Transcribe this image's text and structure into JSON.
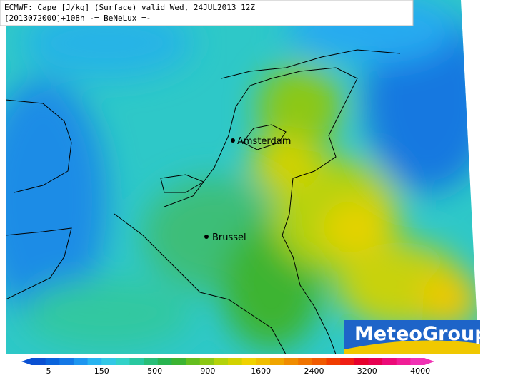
{
  "header": {
    "line1": "ECMWF: Cape [J/kg] (Surface) valid Wed, 24JUL2013 12Z",
    "line2": "[2013072000]+108h -= BeNeLux =-"
  },
  "cities": [
    {
      "label": "Amsterdam"
    },
    {
      "label": "Brussel"
    }
  ],
  "logo": "MeteoGroup",
  "legend": {
    "ticks": [
      5,
      150,
      500,
      900,
      1600,
      2400,
      3200,
      4000
    ],
    "colors": [
      "#0a50d2",
      "#0a64dc",
      "#1478e6",
      "#1e96f0",
      "#28b4f0",
      "#32c8e6",
      "#32d2c8",
      "#28c8a0",
      "#28be78",
      "#28b450",
      "#3cb432",
      "#64be1e",
      "#8cc814",
      "#b4d20a",
      "#d2d200",
      "#f0d200",
      "#f0be00",
      "#f0a500",
      "#f08c00",
      "#f07300",
      "#f05a00",
      "#f03c00",
      "#f01e14",
      "#e6002d",
      "#e60050",
      "#ec0a78",
      "#f01e96",
      "#f032b4"
    ]
  }
}
